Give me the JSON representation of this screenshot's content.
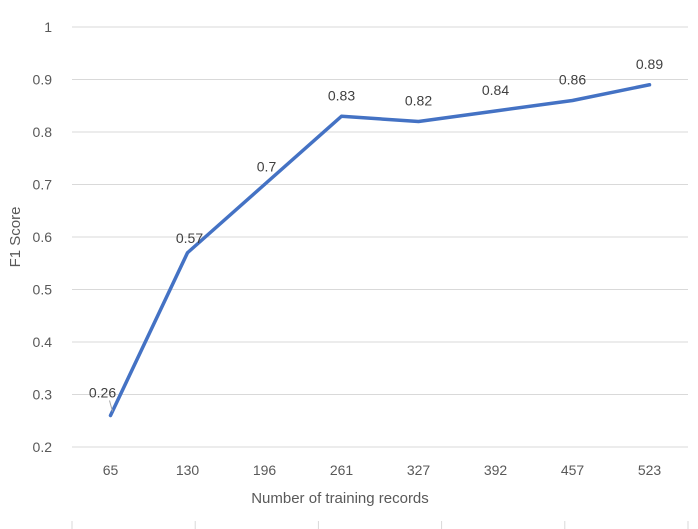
{
  "chart_data": {
    "type": "line",
    "title": "",
    "xlabel": "Number of training records",
    "ylabel": "F1 Score",
    "categories": [
      "65",
      "130",
      "196",
      "261",
      "327",
      "392",
      "457",
      "523"
    ],
    "series": [
      {
        "values": [
          0.26,
          0.57,
          0.7,
          0.83,
          0.82,
          0.84,
          0.86,
          0.89
        ],
        "data_labels": [
          "0.26",
          "0.57",
          "0.7",
          "0.83",
          "0.82",
          "0.84",
          "0.86",
          "0.89"
        ],
        "color": "#4472c4"
      }
    ],
    "ylim": [
      0.2,
      1
    ],
    "yticks": [
      "0.2",
      "0.3",
      "0.4",
      "0.5",
      "0.6",
      "0.7",
      "0.8",
      "0.9",
      "1"
    ],
    "grid": true,
    "legend": "none"
  }
}
